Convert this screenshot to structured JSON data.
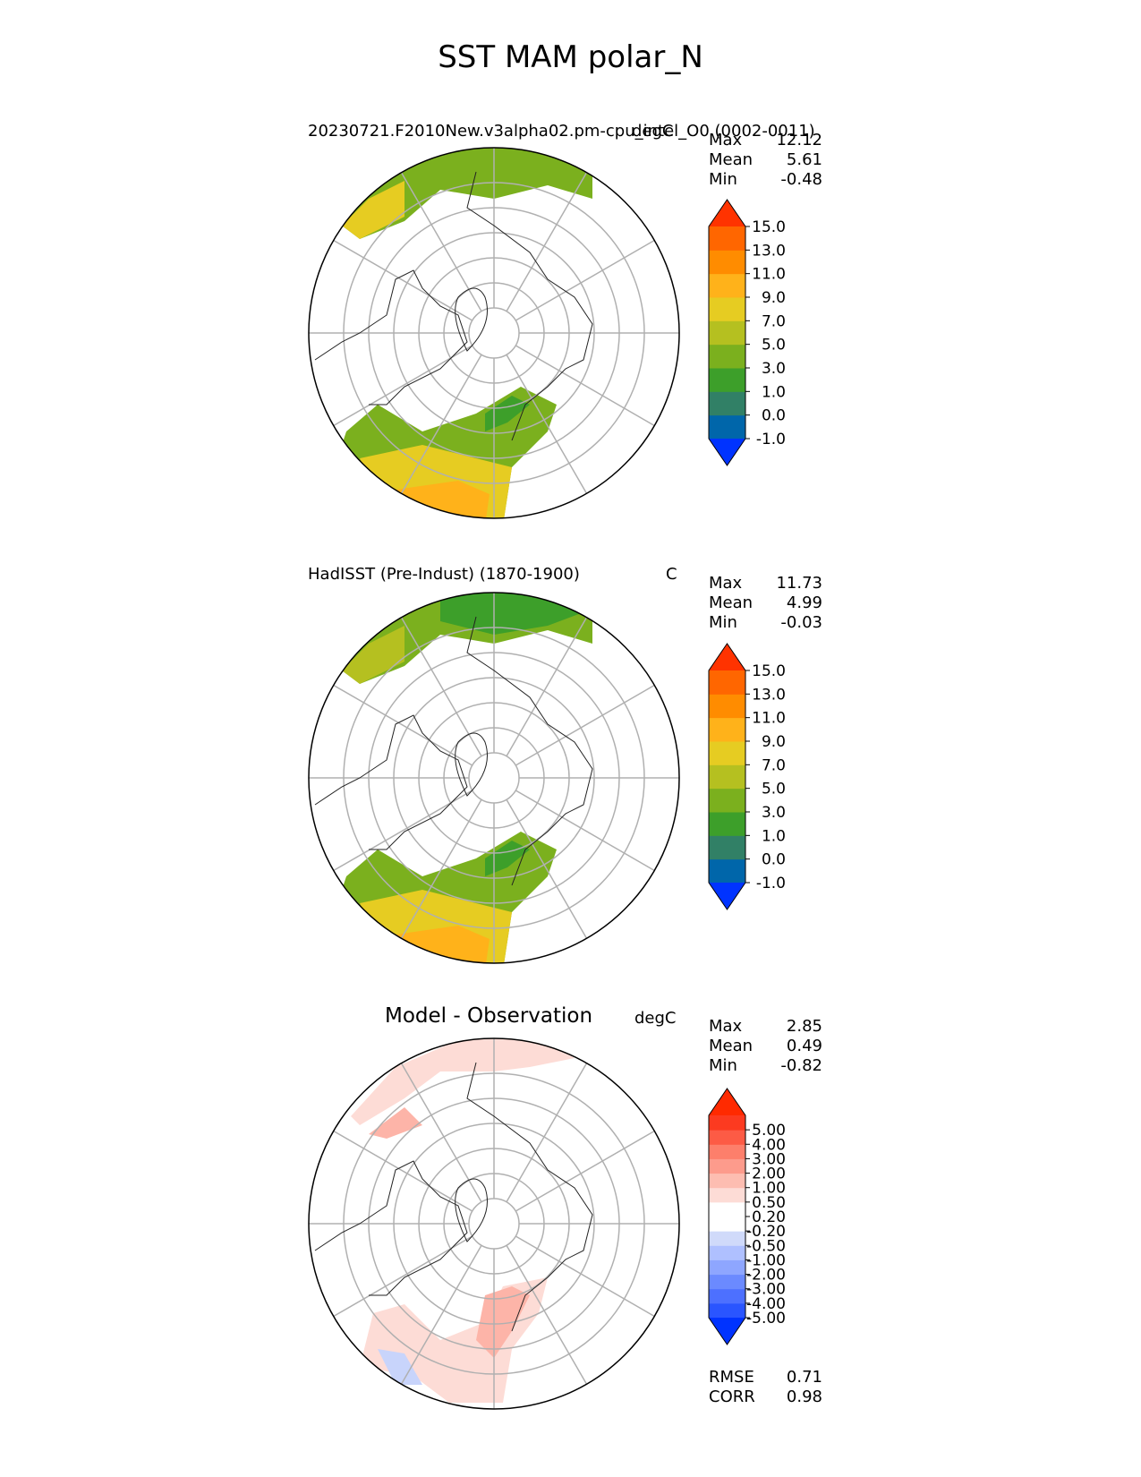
{
  "figure": {
    "title": "SST MAM polar_N"
  },
  "colors": {
    "cbar_sst": [
      "#0033ff",
      "#0066aa",
      "#318066",
      "#3d9f2a",
      "#7bb01e",
      "#b5c020",
      "#e6cc22",
      "#ffb21a",
      "#ff8c00",
      "#ff6600",
      "#ff3300"
    ],
    "cbar_diff": [
      "#0033ff",
      "#2a55ff",
      "#4d70ff",
      "#6b8aff",
      "#8ea6ff",
      "#afc0ff",
      "#d0dafa",
      "#ffffff",
      "#ffffff",
      "#fddcd6",
      "#fdbdb1",
      "#fd9b8c",
      "#fd7f6b",
      "#fd5b45",
      "#fc3a20",
      "#ff2a00"
    ],
    "ocean_warm": "#e6cc22",
    "ocean_cool": "#7bb01e",
    "ocean_cold": "#3d9f2a",
    "ocean_orange": "#ffb21a",
    "diff_pos": "#fdb4a8",
    "diff_neg": "#c8d4fb"
  },
  "panels": [
    {
      "title_left": "20230721.F2010New.v3alpha02.pm-cpu_intel_O0 (0002-0011)",
      "units": "degC",
      "stats": {
        "max_label": "Max",
        "max": "12.12",
        "mean_label": "Mean",
        "mean": "5.61",
        "min_label": "Min",
        "min": "-0.48"
      },
      "colorbar": {
        "ticks": [
          "-1.0",
          "0.0",
          "1.0",
          "3.0",
          "5.0",
          "7.0",
          "9.0",
          "11.0",
          "13.0",
          "15.0"
        ]
      }
    },
    {
      "title_left": "HadISST (Pre-Indust) (1870-1900)",
      "units": "C",
      "stats": {
        "max_label": "Max",
        "max": "11.73",
        "mean_label": "Mean",
        "mean": "4.99",
        "min_label": "Min",
        "min": "-0.03"
      },
      "colorbar": {
        "ticks": [
          "-1.0",
          "0.0",
          "1.0",
          "3.0",
          "5.0",
          "7.0",
          "9.0",
          "11.0",
          "13.0",
          "15.0"
        ]
      }
    },
    {
      "title_left": "Model - Observation",
      "units": "degC",
      "stats": {
        "max_label": "Max",
        "max": "2.85",
        "mean_label": "Mean",
        "mean": "0.49",
        "min_label": "Min",
        "min": "-0.82"
      },
      "colorbar": {
        "ticks": [
          "-5.00",
          "-4.00",
          "-3.00",
          "-2.00",
          "-1.00",
          "-0.50",
          "-0.20",
          "0.20",
          "0.50",
          "1.00",
          "2.00",
          "3.00",
          "4.00",
          "5.00"
        ]
      },
      "extra_stats": {
        "rmse_label": "RMSE",
        "rmse": "0.71",
        "corr_label": "CORR",
        "corr": "0.98"
      }
    }
  ],
  "chart_data": [
    {
      "type": "heatmap",
      "projection": "north polar stereographic",
      "title": "20230721.F2010New.v3alpha02.pm-cpu_intel_O0 (0002-0011)",
      "units": "degC",
      "stats": {
        "max": 12.12,
        "mean": 5.61,
        "min": -0.48
      },
      "levels": [
        -1.0,
        0.0,
        1.0,
        3.0,
        5.0,
        7.0,
        9.0,
        11.0,
        13.0,
        15.0
      ]
    },
    {
      "type": "heatmap",
      "projection": "north polar stereographic",
      "title": "HadISST (Pre-Indust) (1870-1900)",
      "units": "C",
      "stats": {
        "max": 11.73,
        "mean": 4.99,
        "min": -0.03
      },
      "levels": [
        -1.0,
        0.0,
        1.0,
        3.0,
        5.0,
        7.0,
        9.0,
        11.0,
        13.0,
        15.0
      ]
    },
    {
      "type": "heatmap",
      "projection": "north polar stereographic",
      "title": "Model - Observation",
      "units": "degC",
      "stats": {
        "max": 2.85,
        "mean": 0.49,
        "min": -0.82,
        "rmse": 0.71,
        "corr": 0.98
      },
      "levels": [
        -5.0,
        -4.0,
        -3.0,
        -2.0,
        -1.0,
        -0.5,
        -0.2,
        0.2,
        0.5,
        1.0,
        2.0,
        3.0,
        4.0,
        5.0
      ]
    }
  ]
}
